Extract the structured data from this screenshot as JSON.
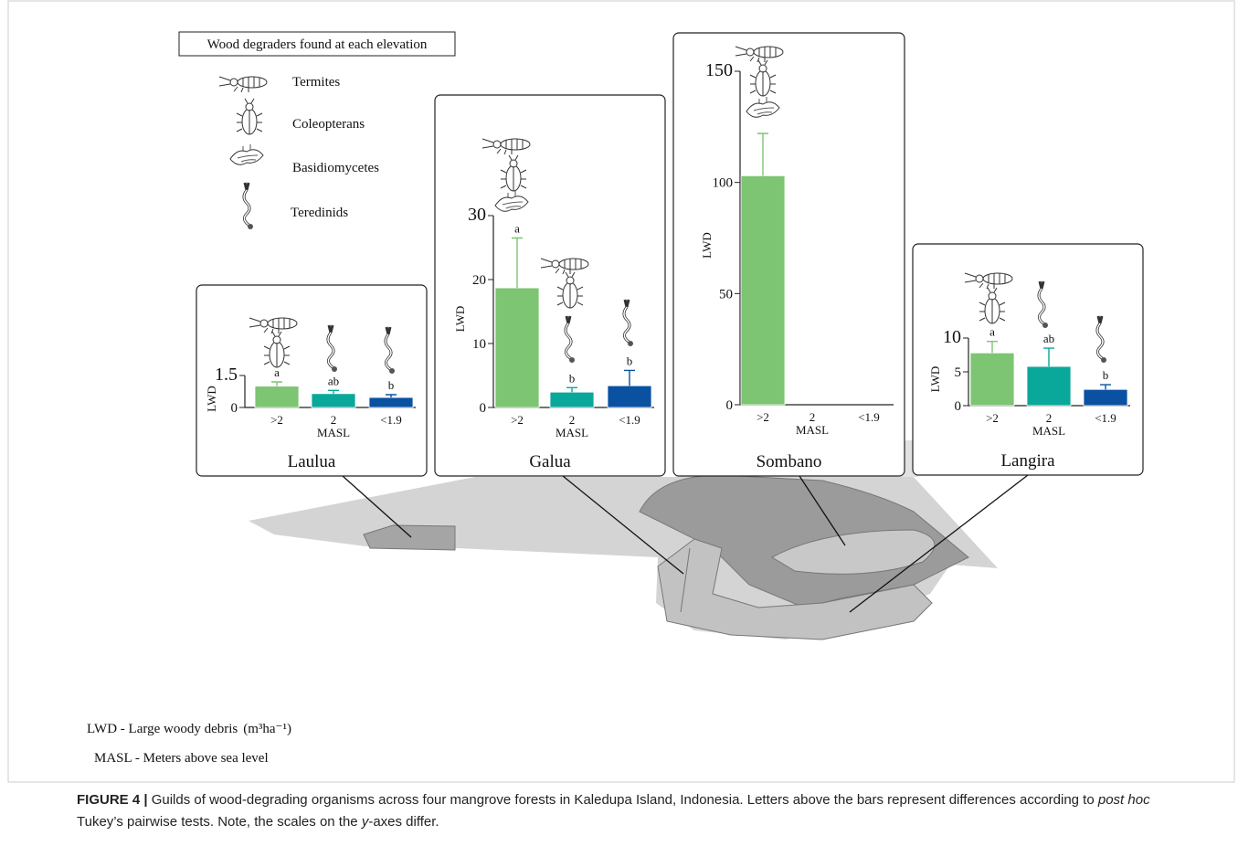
{
  "legend": {
    "title": "Wood degraders found at each elevation",
    "items": [
      "Termites",
      "Coleopterans",
      "Basidiomycetes",
      "Teredinids"
    ]
  },
  "chart_data": [
    {
      "type": "bar",
      "title": "Laulua",
      "ylabel": "LWD",
      "xlabel": "MASL",
      "categories": [
        ">2",
        "2",
        "<1.9"
      ],
      "values": [
        1.0,
        0.65,
        0.47
      ],
      "errors": [
        0.2,
        0.15,
        0.13
      ],
      "annotations": [
        "a",
        "ab",
        "b"
      ],
      "colors": [
        "#7dc473",
        "#0aa89a",
        "#0a51a1"
      ],
      "ylim": [
        0,
        1.5
      ],
      "yticks": [
        0,
        1.5
      ]
    },
    {
      "type": "bar",
      "title": "Galua",
      "ylabel": "LWD",
      "xlabel": "MASL",
      "categories": [
        ">2",
        "2",
        "<1.9"
      ],
      "values": [
        18.7,
        2.4,
        3.4
      ],
      "errors": [
        7.8,
        0.7,
        2.4
      ],
      "annotations": [
        "a",
        "b",
        "b"
      ],
      "colors": [
        "#7dc473",
        "#0aa89a",
        "#0a51a1"
      ],
      "ylim": [
        0,
        30
      ],
      "yticks": [
        0,
        10,
        20,
        30
      ]
    },
    {
      "type": "bar",
      "title": "Sombano",
      "ylabel": "LWD",
      "xlabel": "MASL",
      "categories": [
        ">2",
        "2",
        "<1.9"
      ],
      "values": [
        103,
        null,
        null
      ],
      "errors": [
        19,
        null,
        null
      ],
      "colors": [
        "#7dc473",
        "#0aa89a",
        "#0a51a1"
      ],
      "ylim": [
        0,
        150
      ],
      "yticks": [
        0,
        50,
        100,
        150
      ]
    },
    {
      "type": "bar",
      "title": "Langira",
      "ylabel": "LWD",
      "xlabel": "MASL",
      "categories": [
        ">2",
        "2",
        "<1.9"
      ],
      "values": [
        7.8,
        5.8,
        2.4
      ],
      "errors": [
        1.7,
        2.7,
        0.7
      ],
      "annotations": [
        "a",
        "ab",
        "b"
      ],
      "colors": [
        "#7dc473",
        "#0aa89a",
        "#0a51a1"
      ],
      "ylim": [
        0,
        10
      ],
      "yticks": [
        0,
        5,
        10
      ]
    }
  ],
  "notes": {
    "lwd": "LWD - Large woody debris",
    "lwd_unit": "(m³ha⁻¹)",
    "masl": "MASL - Meters above sea level"
  },
  "caption": {
    "label": "FIGURE 4 |",
    "parts": [
      " Guilds of wood-degrading organisms across four mangrove forests in Kaledupa Island, Indonesia. Letters above the bars represent differences according to ",
      "post hoc",
      " Tukey’s pairwise tests. Note, the scales on the ",
      "y",
      "-axes differ."
    ]
  }
}
